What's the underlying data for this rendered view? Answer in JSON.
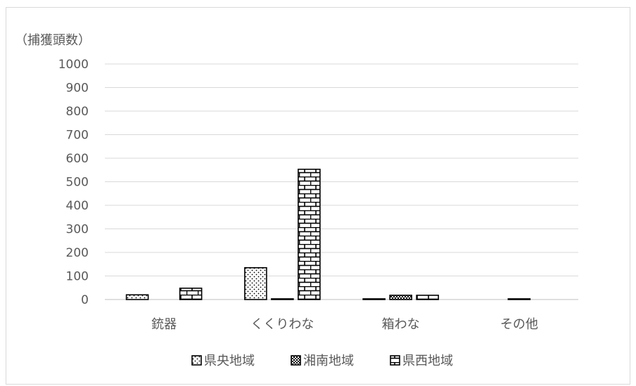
{
  "chart_data": {
    "type": "bar",
    "y_unit_label": "（捕獲頭数）",
    "title": "",
    "xlabel": "",
    "ylabel": "",
    "categories": [
      "銃器",
      "くくりわな",
      "箱わな",
      "その他"
    ],
    "series": [
      {
        "name": "県央地域",
        "values": [
          20,
          135,
          3,
          0
        ],
        "pattern": "dots"
      },
      {
        "name": "湘南地域",
        "values": [
          0,
          3,
          18,
          3
        ],
        "pattern": "checker"
      },
      {
        "name": "県西地域",
        "values": [
          48,
          553,
          18,
          0
        ],
        "pattern": "bricks"
      }
    ],
    "ylim": [
      0,
      1000
    ],
    "yticks": [
      0,
      100,
      200,
      300,
      400,
      500,
      600,
      700,
      800,
      900,
      1000
    ],
    "grid": true,
    "legend_position": "bottom",
    "colors": {
      "grid": "#d9d9d9",
      "text": "#595959",
      "bar_stroke": "#000000",
      "axis": "#bfbfbf"
    }
  }
}
